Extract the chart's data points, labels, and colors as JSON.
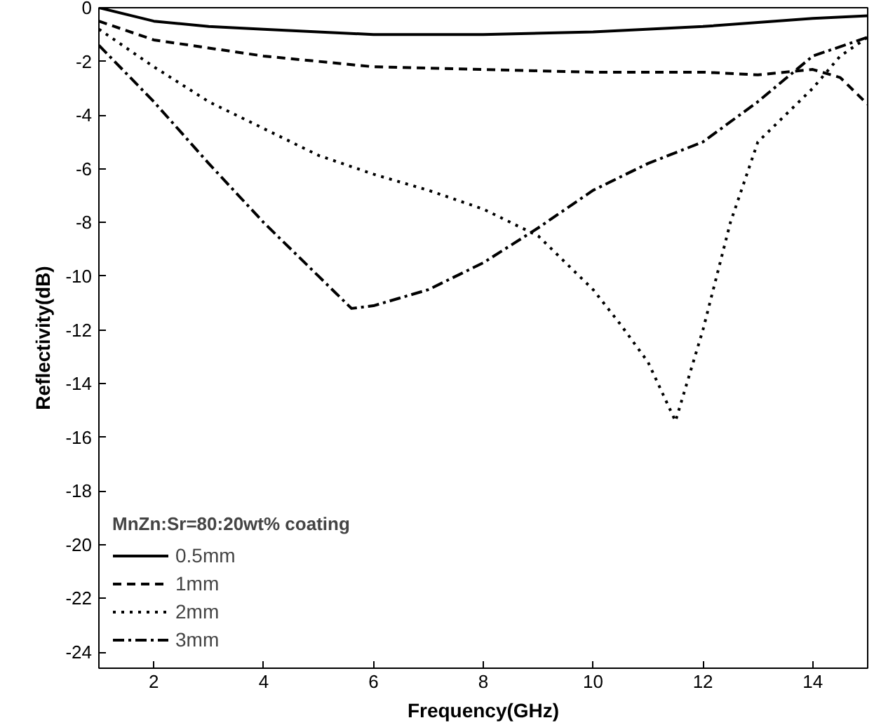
{
  "chart_data": {
    "type": "line",
    "xlabel": "Frequency(GHz)",
    "ylabel": "Reflectivity(dB)",
    "legend_title": "MnZn:Sr=80:20wt% coating",
    "legend": "bottom left",
    "grid": false,
    "xlim": [
      1,
      15
    ],
    "ylim": [
      -24.6,
      0
    ],
    "xticks": [
      2,
      4,
      6,
      8,
      10,
      12,
      14
    ],
    "yticks": [
      0,
      -2,
      -4,
      -6,
      -8,
      -10,
      -12,
      -14,
      -16,
      -18,
      -20,
      -22,
      -24
    ],
    "series": [
      {
        "name": "0.5mm",
        "color": "#000000",
        "line_style": "solid",
        "x": [
          1,
          2,
          3,
          4,
          6,
          8,
          10,
          12,
          14,
          15
        ],
        "values": [
          0,
          -0.5,
          -0.7,
          -0.8,
          -1.0,
          -1.0,
          -0.9,
          -0.7,
          -0.4,
          -0.3
        ]
      },
      {
        "name": "1mm",
        "color": "#000000",
        "line_style": "dashed",
        "x": [
          1,
          2,
          3,
          4,
          6,
          8,
          10,
          12,
          13,
          14,
          14.5,
          15
        ],
        "values": [
          -0.5,
          -1.2,
          -1.5,
          -1.8,
          -2.2,
          -2.3,
          -2.4,
          -2.4,
          -2.5,
          -2.3,
          -2.6,
          -3.6
        ]
      },
      {
        "name": "2mm",
        "color": "#000000",
        "line_style": "dotted",
        "x": [
          1,
          2,
          3,
          4,
          5,
          6,
          7,
          8,
          9,
          10,
          10.5,
          11,
          11.5,
          12,
          12.5,
          13,
          14,
          14.5,
          15
        ],
        "values": [
          -0.8,
          -2.2,
          -3.5,
          -4.5,
          -5.5,
          -6.2,
          -6.8,
          -7.5,
          -8.5,
          -10.5,
          -11.8,
          -13.2,
          -15.4,
          -12,
          -8,
          -5,
          -3,
          -1.8,
          -1.1
        ]
      },
      {
        "name": "3mm",
        "color": "#000000",
        "line_style": "dashdot",
        "x": [
          1,
          2,
          3,
          4,
          5,
          5.6,
          6,
          7,
          8,
          9,
          10,
          11,
          12,
          13,
          14,
          15
        ],
        "values": [
          -1.4,
          -3.5,
          -5.8,
          -8,
          -10,
          -11.2,
          -11.1,
          -10.5,
          -9.5,
          -8.2,
          -6.8,
          -5.8,
          -5,
          -3.5,
          -1.8,
          -1.1
        ]
      }
    ]
  }
}
